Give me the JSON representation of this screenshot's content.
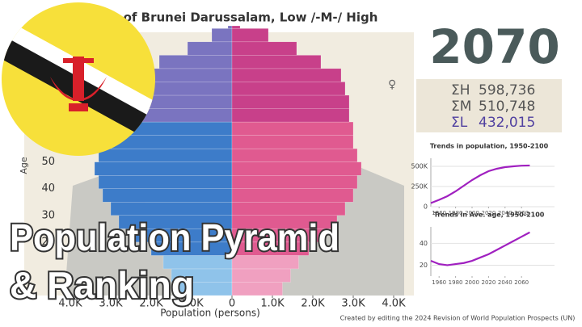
{
  "title": "of Brunei Darussalam, Low /-M-/ High",
  "year": "2070",
  "sums": [
    {
      "label": "ΣH",
      "value": "598,736"
    },
    {
      "label": "ΣM",
      "value": "510,748"
    },
    {
      "label": "ΣL",
      "value": "432,015"
    }
  ],
  "female_symbol": "♀",
  "overlay": [
    "Population Pyramid",
    "& Ranking"
  ],
  "source": "Created by editing the 2024 Revision of World Population Prospects (UN)",
  "chart_data": [
    {
      "type": "pyramid",
      "xlabel": "Population (persons)",
      "ylabel": "Age",
      "y": [
        0,
        5,
        10,
        15,
        20,
        25,
        30,
        35,
        40,
        45,
        50,
        55,
        60,
        65,
        70,
        75,
        80,
        85,
        90,
        95,
        100
      ],
      "ylim": [
        0,
        101
      ],
      "yticks": [
        20,
        30,
        40,
        50
      ],
      "xlim": [
        -5000,
        4500
      ],
      "xticks": [
        {
          "value": -4000,
          "label": "4.0K"
        },
        {
          "value": -3000,
          "label": "3.0K"
        },
        {
          "value": -2000,
          "label": "2.0K"
        },
        {
          "value": -1000,
          "label": "1.0K"
        },
        0,
        {
          "value": 1000,
          "label": "1.0K"
        },
        {
          "value": 2000,
          "label": "2.0K"
        },
        {
          "value": 3000,
          "label": "3.0K"
        },
        {
          "value": 4000,
          "label": "4.0K"
        }
      ],
      "series": [
        {
          "values": [
            1300,
            1500,
            1700,
            2000,
            2400,
            2800,
            3000,
            3200,
            3300,
            3400,
            3300,
            3100,
            3200,
            3000,
            2900,
            2700,
            2400,
            1800,
            1100,
            500,
            100
          ],
          "colors": [
            "#8fc3ea",
            "#8fc3ea",
            "#8fc3ea",
            "#3d7cc9",
            "#3d7cc9",
            "#3d7cc9",
            "#3d7cc9",
            "#3d7cc9",
            "#3d7cc9",
            "#3d7cc9",
            "#3d7cc9",
            "#3d7cc9",
            "#3d7cc9",
            "#7a74c0",
            "#7a74c0",
            "#7a74c0",
            "#7a74c0",
            "#7a74c0",
            "#7a74c0",
            "#7a74c0",
            "#7a74c0"
          ]
        },
        {
          "values": [
            1250,
            1450,
            1650,
            1900,
            2300,
            2600,
            2800,
            3000,
            3100,
            3200,
            3100,
            3000,
            3000,
            2900,
            2900,
            2800,
            2700,
            2200,
            1600,
            900,
            200
          ],
          "colors": [
            "#f0a0c0",
            "#f0a0c0",
            "#f0a0c0",
            "#e05a90",
            "#e05a90",
            "#e05a90",
            "#e05a90",
            "#e05a90",
            "#e05a90",
            "#e05a90",
            "#e05a90",
            "#e05a90",
            "#e05a90",
            "#c8408a",
            "#c8408a",
            "#c8408a",
            "#c8408a",
            "#c8408a",
            "#c8408a",
            "#c8408a",
            "#c8408a"
          ]
        }
      ]
    },
    {
      "type": "line",
      "title": "Trends in population, 1950-2100",
      "x": [
        1950,
        1960,
        1970,
        1980,
        1990,
        2000,
        2010,
        2020,
        2030,
        2040,
        2050,
        2060,
        2070
      ],
      "xlim": [
        1950,
        2100
      ],
      "xticks": [
        1960,
        1980,
        2000,
        2020,
        2040,
        2060
      ],
      "ylim": [
        0,
        600000
      ],
      "yticks": [
        0,
        {
          "value": 250000,
          "label": "250K"
        },
        {
          "value": 500000,
          "label": "500K"
        }
      ],
      "series": [
        {
          "color": "#a020c0",
          "values": [
            45000,
            85000,
            130000,
            190000,
            260000,
            330000,
            390000,
            440000,
            470000,
            490000,
            500000,
            508000,
            510748
          ]
        }
      ]
    },
    {
      "type": "line",
      "title": "Trends in Ave. age, 1950-2100",
      "x": [
        1950,
        1960,
        1970,
        1980,
        1990,
        2000,
        2010,
        2020,
        2030,
        2040,
        2050,
        2060,
        2070
      ],
      "xlim": [
        1950,
        2100
      ],
      "xticks": [
        1960,
        1980,
        2000,
        2020,
        2040,
        2060
      ],
      "ylim": [
        10,
        55
      ],
      "yticks": [
        20,
        40
      ],
      "series": [
        {
          "color": "#a020c0",
          "values": [
            24,
            21,
            20,
            21,
            22,
            24,
            27,
            30,
            34,
            38,
            42,
            46,
            50
          ]
        }
      ]
    }
  ]
}
